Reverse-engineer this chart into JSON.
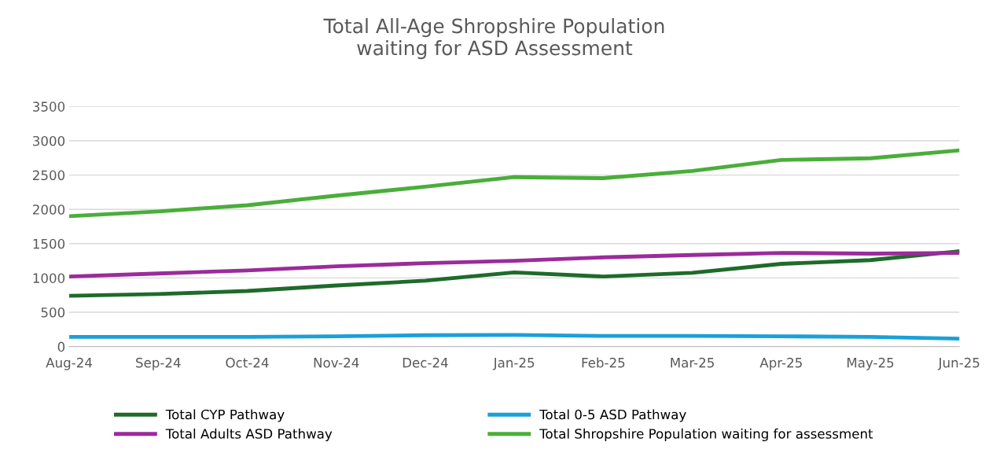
{
  "chart_data": {
    "type": "line",
    "title": "Total All-Age Shropshire Population\nwaiting for ASD Assessment",
    "categories": [
      "Aug-24",
      "Sep-24",
      "Oct-24",
      "Nov-24",
      "Dec-24",
      "Jan-25",
      "Feb-25",
      "Mar-25",
      "Apr-25",
      "May-25",
      "Jun-25"
    ],
    "series": [
      {
        "name": "Total CYP Pathway",
        "color": "#1e6b2a",
        "values": [
          740,
          765,
          810,
          890,
          960,
          1080,
          1020,
          1075,
          1205,
          1260,
          1390
        ]
      },
      {
        "name": "Total 0-5 ASD Pathway",
        "color": "#1aa0d8",
        "values": [
          140,
          140,
          140,
          150,
          165,
          170,
          155,
          155,
          150,
          140,
          115
        ]
      },
      {
        "name": "Total Adults ASD Pathway",
        "color": "#9b2b9b",
        "values": [
          1020,
          1065,
          1110,
          1170,
          1215,
          1250,
          1300,
          1335,
          1365,
          1355,
          1365
        ]
      },
      {
        "name": "Total Shropshire Population waiting for assessment",
        "color": "#4aae3a",
        "values": [
          1900,
          1970,
          2060,
          2200,
          2330,
          2470,
          2455,
          2560,
          2720,
          2745,
          2860
        ]
      }
    ],
    "ylim": [
      0,
      3500
    ],
    "yticks": [
      0,
      500,
      1000,
      1500,
      2000,
      2500,
      3000,
      3500
    ],
    "grid": "y",
    "legend": "bottom",
    "line_style": "solid",
    "marker": "none"
  }
}
